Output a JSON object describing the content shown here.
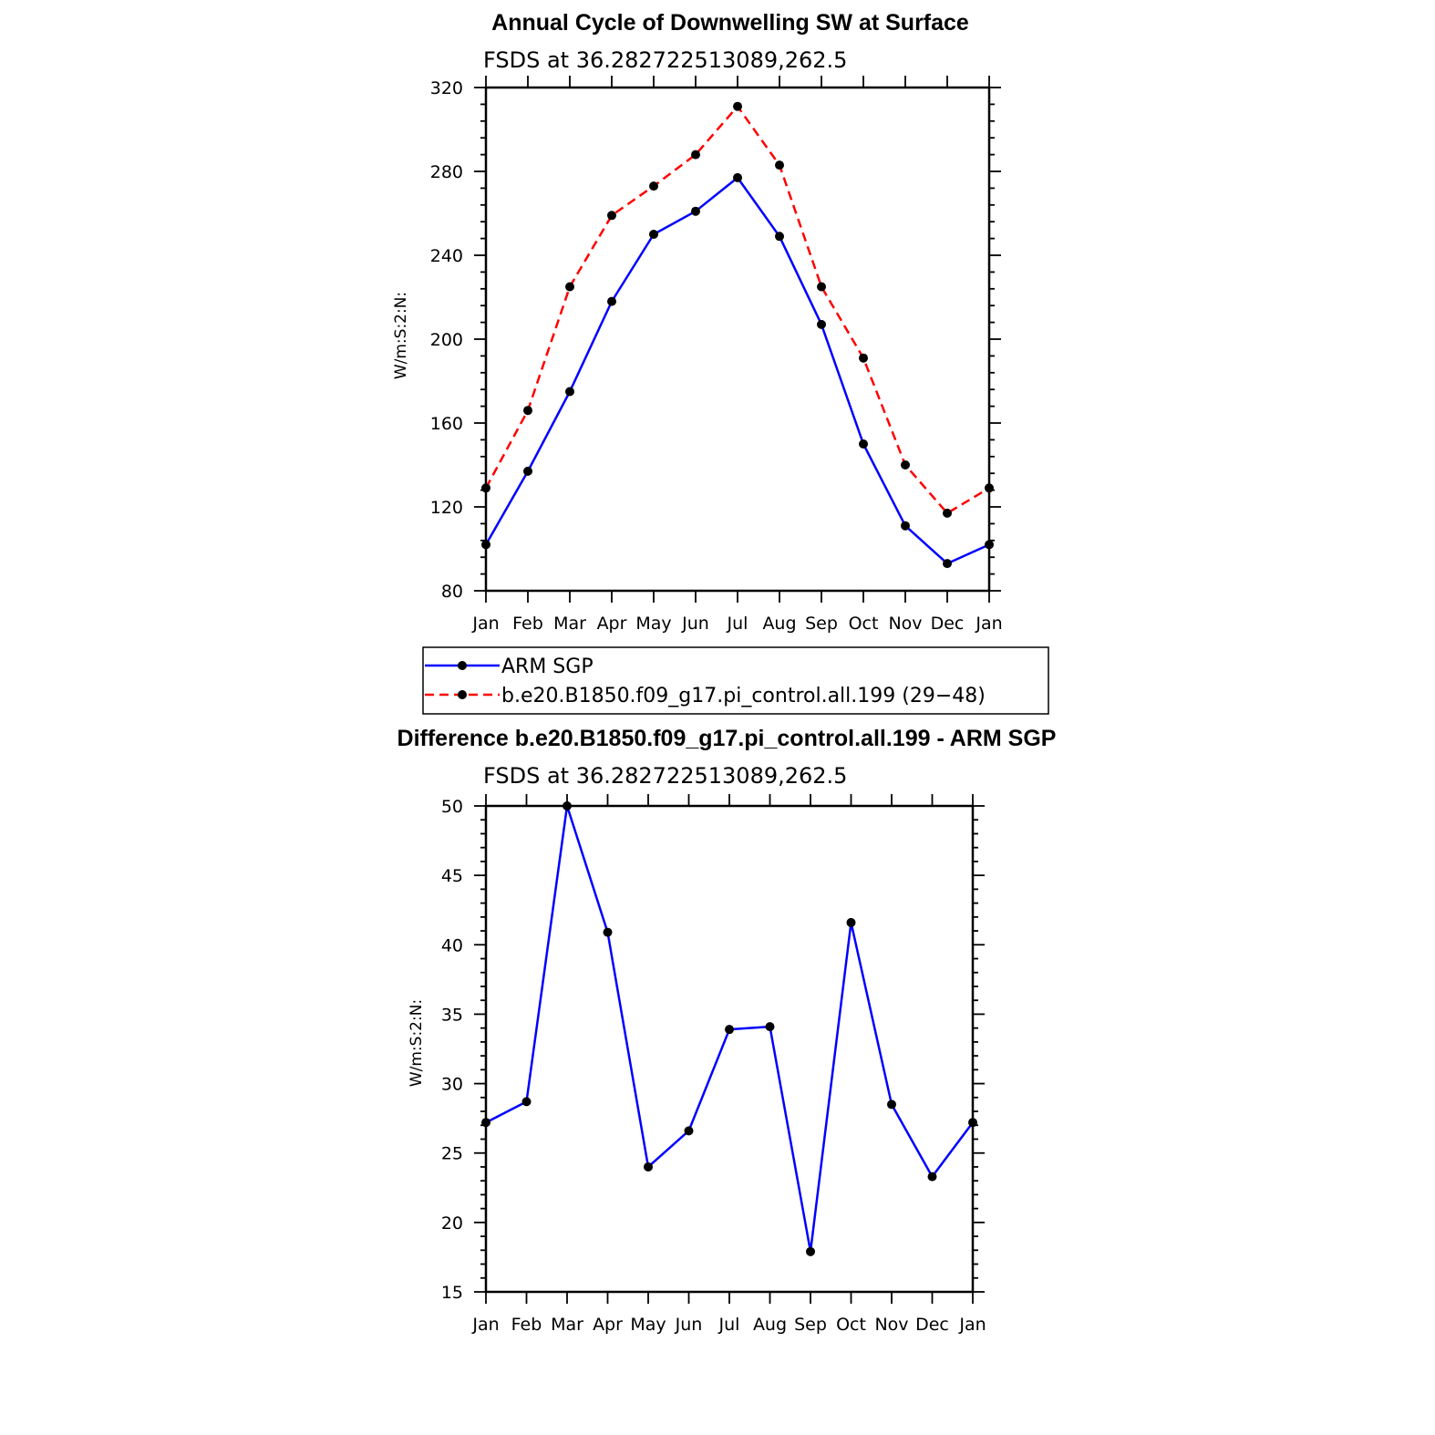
{
  "chart_data": [
    {
      "type": "line",
      "title": "Annual Cycle of Downwelling SW at Surface",
      "subtitle": "FSDS at 36.282722513089,262.5",
      "ylabel": "W/m:S:2:N:",
      "xlabel": "",
      "categories": [
        "Jan",
        "Feb",
        "Mar",
        "Apr",
        "May",
        "Jun",
        "Jul",
        "Aug",
        "Sep",
        "Oct",
        "Nov",
        "Dec",
        "Jan"
      ],
      "ylim": [
        80,
        320
      ],
      "yticks": [
        "80",
        "120",
        "160",
        "200",
        "240",
        "280",
        "320"
      ],
      "grid": false,
      "legend_position": "bottom",
      "series": [
        {
          "name": "ARM SGP",
          "color": "#0000ff",
          "dash": "solid",
          "values": [
            102,
            137,
            175,
            218,
            250,
            261,
            277,
            249,
            207,
            150,
            111,
            93,
            102
          ]
        },
        {
          "name": "b.e20.B1850.f09_g17.pi_control.all.199 (29−48)",
          "color": "#ff0000",
          "dash": "dashed",
          "values": [
            129,
            166,
            225,
            259,
            273,
            288,
            311,
            283,
            225,
            191,
            140,
            117,
            129
          ]
        }
      ]
    },
    {
      "type": "line",
      "title": "Difference b.e20.B1850.f09_g17.pi_control.all.199 - ARM SGP",
      "subtitle": "FSDS at 36.282722513089,262.5",
      "ylabel": "W/m:S:2:N:",
      "xlabel": "",
      "categories": [
        "Jan",
        "Feb",
        "Mar",
        "Apr",
        "May",
        "Jun",
        "Jul",
        "Aug",
        "Sep",
        "Oct",
        "Nov",
        "Dec",
        "Jan"
      ],
      "ylim": [
        15,
        50
      ],
      "yticks": [
        "15",
        "20",
        "25",
        "30",
        "35",
        "40",
        "45",
        "50"
      ],
      "grid": false,
      "series": [
        {
          "name": "",
          "color": "#0000ff",
          "dash": "solid",
          "values": [
            27.2,
            28.7,
            50.0,
            40.9,
            24.0,
            26.6,
            33.9,
            34.1,
            17.9,
            41.6,
            28.5,
            23.3,
            27.2
          ]
        }
      ]
    }
  ]
}
